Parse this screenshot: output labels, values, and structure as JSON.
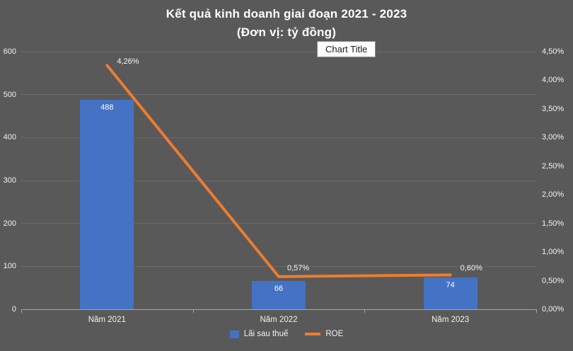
{
  "title": {
    "line1": "Kết quả kinh doanh giai đoạn 2021 - 2023",
    "line2": "(Đơn vị: tỷ đồng)"
  },
  "chart_title_box": "Chart Title",
  "chart_data": {
    "type": "bar+line",
    "title": "Kết quả kinh doanh giai đoạn 2021 - 2023 (Đơn vị: tỷ đồng)",
    "categories": [
      "Năm 2021",
      "Năm 2022",
      "Năm 2023"
    ],
    "series": [
      {
        "name": "Lãi sau thuế",
        "type": "bar",
        "axis": "left",
        "color": "#4472C4",
        "values": [
          488,
          66,
          74
        ],
        "labels": [
          "488",
          "66",
          "74"
        ]
      },
      {
        "name": "ROE",
        "type": "line",
        "axis": "right",
        "color": "#ED7D31",
        "values": [
          4.26,
          0.57,
          0.6
        ],
        "labels": [
          "4,26%",
          "0,57%",
          "0,60%"
        ]
      }
    ],
    "left_axis": {
      "min": 0,
      "max": 600,
      "ticks": [
        0,
        100,
        200,
        300,
        400,
        500,
        600
      ],
      "labels": [
        "0",
        "100",
        "200",
        "300",
        "400",
        "500",
        "600"
      ]
    },
    "right_axis": {
      "min": 0,
      "max": 4.5,
      "ticks": [
        0,
        0.5,
        1,
        1.5,
        2,
        2.5,
        3,
        3.5,
        4,
        4.5
      ],
      "labels": [
        "0,00%",
        "0,50%",
        "1,00%",
        "1,50%",
        "2,00%",
        "2,50%",
        "3,00%",
        "3,50%",
        "4,00%",
        "4,50%"
      ]
    },
    "legend_position": "bottom",
    "grid": true,
    "colors": {
      "background": "#595959",
      "gridline": "#6a6a6a",
      "axis_line": "#a6a6a6",
      "text": "#f2f2f2",
      "bar": "#4472C4",
      "line": "#ED7D31"
    }
  }
}
